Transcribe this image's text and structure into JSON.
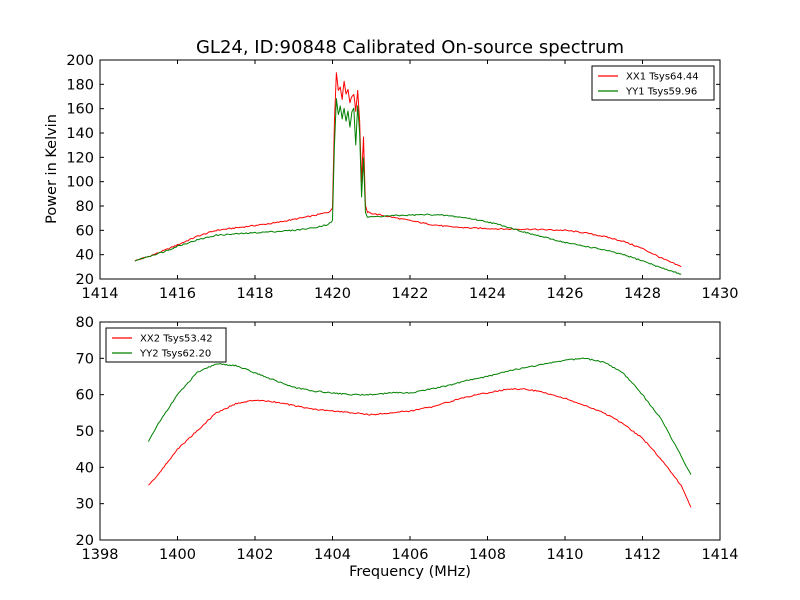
{
  "title": "GL24, ID:90848 Calibrated On-source spectrum",
  "xlabel": "Frequency (MHz)",
  "ylabel": "Power in Kelvin",
  "colors": {
    "red": "#ff0000",
    "green": "#008000"
  },
  "chart_data": [
    {
      "type": "line",
      "xlim": [
        1414,
        1430
      ],
      "ylim": [
        20,
        200
      ],
      "xticks": [
        1414,
        1416,
        1418,
        1420,
        1422,
        1424,
        1426,
        1428,
        1430
      ],
      "yticks": [
        20,
        40,
        60,
        80,
        100,
        120,
        140,
        160,
        180,
        200
      ],
      "legend_position": "top-right",
      "series": [
        {
          "name": "XX1 Tsys64.44",
          "color": "#ff0000",
          "points": [
            [
              1414.9,
              35
            ],
            [
              1415.3,
              39
            ],
            [
              1415.7,
              44
            ],
            [
              1416.0,
              48
            ],
            [
              1416.5,
              55
            ],
            [
              1417.0,
              60
            ],
            [
              1417.5,
              62
            ],
            [
              1418.0,
              64
            ],
            [
              1418.5,
              66
            ],
            [
              1419.0,
              69
            ],
            [
              1419.5,
              72
            ],
            [
              1419.9,
              75
            ],
            [
              1420.0,
              78
            ],
            [
              1420.05,
              150
            ],
            [
              1420.1,
              190
            ],
            [
              1420.15,
              175
            ],
            [
              1420.2,
              178
            ],
            [
              1420.25,
              168
            ],
            [
              1420.3,
              183
            ],
            [
              1420.35,
              172
            ],
            [
              1420.4,
              176
            ],
            [
              1420.45,
              165
            ],
            [
              1420.5,
              170
            ],
            [
              1420.55,
              172
            ],
            [
              1420.6,
              158
            ],
            [
              1420.65,
              175
            ],
            [
              1420.7,
              150
            ],
            [
              1420.75,
              100
            ],
            [
              1420.8,
              137
            ],
            [
              1420.85,
              80
            ],
            [
              1420.9,
              75
            ],
            [
              1421.0,
              74
            ],
            [
              1421.5,
              71
            ],
            [
              1422.0,
              68
            ],
            [
              1422.5,
              65
            ],
            [
              1423.0,
              63
            ],
            [
              1423.5,
              62
            ],
            [
              1424.0,
              61.5
            ],
            [
              1424.5,
              61
            ],
            [
              1425.0,
              61
            ],
            [
              1425.5,
              60.5
            ],
            [
              1426.0,
              60
            ],
            [
              1426.5,
              58
            ],
            [
              1427.0,
              55
            ],
            [
              1427.5,
              51
            ],
            [
              1428.0,
              45
            ],
            [
              1428.5,
              37
            ],
            [
              1429.0,
              30
            ]
          ]
        },
        {
          "name": "YY1 Tsys59.96",
          "color": "#008000",
          "points": [
            [
              1414.9,
              35
            ],
            [
              1415.3,
              39
            ],
            [
              1415.7,
              43
            ],
            [
              1416.0,
              47
            ],
            [
              1416.5,
              52
            ],
            [
              1417.0,
              56
            ],
            [
              1417.5,
              57
            ],
            [
              1418.0,
              58
            ],
            [
              1418.5,
              59
            ],
            [
              1419.0,
              60
            ],
            [
              1419.5,
              62
            ],
            [
              1419.9,
              65
            ],
            [
              1420.0,
              68
            ],
            [
              1420.05,
              130
            ],
            [
              1420.1,
              168
            ],
            [
              1420.15,
              155
            ],
            [
              1420.2,
              162
            ],
            [
              1420.25,
              152
            ],
            [
              1420.3,
              160
            ],
            [
              1420.35,
              150
            ],
            [
              1420.4,
              158
            ],
            [
              1420.45,
              145
            ],
            [
              1420.5,
              157
            ],
            [
              1420.55,
              160
            ],
            [
              1420.6,
              130
            ],
            [
              1420.65,
              162
            ],
            [
              1420.7,
              140
            ],
            [
              1420.75,
              88
            ],
            [
              1420.8,
              120
            ],
            [
              1420.85,
              75
            ],
            [
              1420.9,
              71
            ],
            [
              1421.0,
              71
            ],
            [
              1421.5,
              72
            ],
            [
              1422.0,
              72.5
            ],
            [
              1422.5,
              73
            ],
            [
              1423.0,
              72
            ],
            [
              1423.5,
              70
            ],
            [
              1424.0,
              67
            ],
            [
              1424.5,
              63
            ],
            [
              1425.0,
              58
            ],
            [
              1425.5,
              54
            ],
            [
              1426.0,
              50
            ],
            [
              1426.5,
              47
            ],
            [
              1427.0,
              44
            ],
            [
              1427.5,
              40
            ],
            [
              1428.0,
              35
            ],
            [
              1428.5,
              29
            ],
            [
              1429.0,
              24
            ]
          ]
        }
      ]
    },
    {
      "type": "line",
      "xlim": [
        1398,
        1414
      ],
      "ylim": [
        20,
        80
      ],
      "xticks": [
        1398,
        1400,
        1402,
        1404,
        1406,
        1408,
        1410,
        1412,
        1414
      ],
      "yticks": [
        20,
        30,
        40,
        50,
        60,
        70,
        80
      ],
      "legend_position": "top-left",
      "series": [
        {
          "name": "XX2 Tsys53.42",
          "color": "#ff0000",
          "points": [
            [
              1399.25,
              35
            ],
            [
              1399.5,
              38
            ],
            [
              1400.0,
              45
            ],
            [
              1400.5,
              50
            ],
            [
              1401.0,
              55
            ],
            [
              1401.5,
              57.5
            ],
            [
              1402.0,
              58.5
            ],
            [
              1402.5,
              58
            ],
            [
              1403.0,
              57
            ],
            [
              1403.5,
              56
            ],
            [
              1404.0,
              55.5
            ],
            [
              1404.5,
              55
            ],
            [
              1405.0,
              54.5
            ],
            [
              1405.5,
              55
            ],
            [
              1406.0,
              55.5
            ],
            [
              1406.5,
              56.5
            ],
            [
              1407.0,
              58
            ],
            [
              1407.5,
              59.5
            ],
            [
              1408.0,
              60.5
            ],
            [
              1408.5,
              61.5
            ],
            [
              1409.0,
              61.5
            ],
            [
              1409.5,
              60.5
            ],
            [
              1410.0,
              59
            ],
            [
              1410.5,
              57
            ],
            [
              1411.0,
              55
            ],
            [
              1411.5,
              52
            ],
            [
              1412.0,
              48
            ],
            [
              1412.5,
              42
            ],
            [
              1413.0,
              35
            ],
            [
              1413.25,
              29
            ]
          ]
        },
        {
          "name": "YY2 Tsys62.20",
          "color": "#008000",
          "points": [
            [
              1399.25,
              47
            ],
            [
              1399.5,
              52
            ],
            [
              1400.0,
              60
            ],
            [
              1400.5,
              66
            ],
            [
              1401.0,
              68.5
            ],
            [
              1401.5,
              68
            ],
            [
              1402.0,
              66
            ],
            [
              1402.5,
              64
            ],
            [
              1403.0,
              62
            ],
            [
              1403.5,
              61
            ],
            [
              1404.0,
              60.5
            ],
            [
              1404.5,
              60
            ],
            [
              1405.0,
              60
            ],
            [
              1405.5,
              60.5
            ],
            [
              1406.0,
              60.5
            ],
            [
              1406.5,
              61.5
            ],
            [
              1407.0,
              62.5
            ],
            [
              1407.5,
              64
            ],
            [
              1408.0,
              65
            ],
            [
              1408.5,
              66.5
            ],
            [
              1409.0,
              67.5
            ],
            [
              1409.5,
              68.5
            ],
            [
              1410.0,
              69.5
            ],
            [
              1410.5,
              70
            ],
            [
              1411.0,
              69
            ],
            [
              1411.5,
              66
            ],
            [
              1412.0,
              60
            ],
            [
              1412.5,
              53
            ],
            [
              1413.0,
              43
            ],
            [
              1413.25,
              38
            ]
          ]
        }
      ]
    }
  ]
}
